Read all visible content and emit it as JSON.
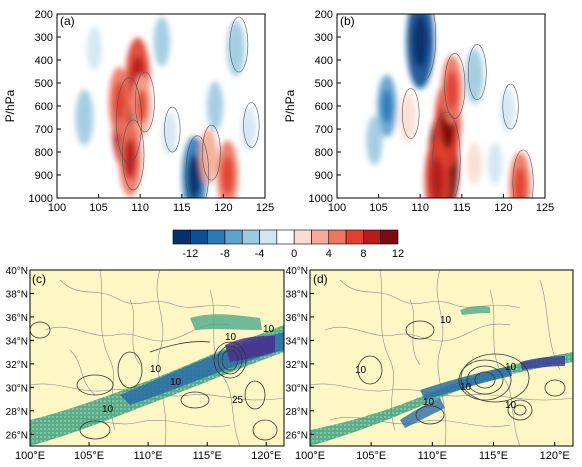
{
  "chart_data": [
    {
      "type": "heatmap",
      "panel_label": "(a)",
      "ylabel": "P/hPa",
      "x_ticks": [
        "100",
        "105",
        "110",
        "115",
        "120",
        "125"
      ],
      "y_ticks": [
        "200",
        "300",
        "400",
        "500",
        "600",
        "700",
        "800",
        "900",
        "1000"
      ],
      "xlim": [
        100,
        125
      ],
      "ylim": [
        1000,
        200
      ],
      "features": [
        {
          "x": 108.3,
          "y": 680,
          "value": 11
        },
        {
          "x": 109.7,
          "y": 480,
          "value": 9
        },
        {
          "x": 108.8,
          "y": 830,
          "value": 8
        },
        {
          "x": 107.5,
          "y": 580,
          "value": 7
        },
        {
          "x": 110.2,
          "y": 600,
          "value": 6
        },
        {
          "x": 103.3,
          "y": 650,
          "value": -5
        },
        {
          "x": 116.5,
          "y": 910,
          "value": -9
        },
        {
          "x": 120.5,
          "y": 900,
          "value": 7
        },
        {
          "x": 118.2,
          "y": 820,
          "value": 5
        },
        {
          "x": 112.6,
          "y": 320,
          "value": -4
        },
        {
          "x": 121.5,
          "y": 350,
          "value": -5
        },
        {
          "x": 104.5,
          "y": 350,
          "value": -3
        },
        {
          "x": 113.5,
          "y": 720,
          "value": -3
        },
        {
          "x": 119.0,
          "y": 600,
          "value": -4
        },
        {
          "x": 123.0,
          "y": 700,
          "value": -3
        },
        {
          "x": 101.5,
          "y": 850,
          "value": 2
        }
      ]
    },
    {
      "type": "heatmap",
      "panel_label": "(b)",
      "ylabel": "P/hPa",
      "x_ticks": [
        "100",
        "105",
        "110",
        "115",
        "120",
        "125"
      ],
      "y_ticks": [
        "200",
        "300",
        "400",
        "500",
        "600",
        "700",
        "800",
        "900",
        "1000"
      ],
      "xlim": [
        100,
        125
      ],
      "ylim": [
        1000,
        200
      ],
      "features": [
        {
          "x": 112.8,
          "y": 850,
          "value": 13
        },
        {
          "x": 113.3,
          "y": 680,
          "value": 10
        },
        {
          "x": 113.8,
          "y": 530,
          "value": 7
        },
        {
          "x": 112.0,
          "y": 920,
          "value": 9
        },
        {
          "x": 110.0,
          "y": 320,
          "value": -11
        },
        {
          "x": 106.0,
          "y": 600,
          "value": -6
        },
        {
          "x": 116.5,
          "y": 470,
          "value": -5
        },
        {
          "x": 104.5,
          "y": 750,
          "value": -4
        },
        {
          "x": 122.0,
          "y": 950,
          "value": 7
        },
        {
          "x": 119.0,
          "y": 850,
          "value": -3
        },
        {
          "x": 108.5,
          "y": 650,
          "value": 4
        },
        {
          "x": 116.5,
          "y": 850,
          "value": 3
        },
        {
          "x": 120.5,
          "y": 620,
          "value": -3
        },
        {
          "x": 103.0,
          "y": 300,
          "value": 2
        }
      ]
    },
    {
      "type": "heatmap",
      "panel_label": "(c)",
      "x_ticks": [
        "100°E",
        "105°E",
        "110°E",
        "115°E",
        "120°E"
      ],
      "y_ticks": [
        "26°N",
        "28°N",
        "30°N",
        "32°N",
        "34°N",
        "36°N",
        "38°N",
        "40°N"
      ],
      "xlim": [
        100,
        121.5
      ],
      "ylim": [
        25,
        40
      ],
      "contour_labels": [
        "10",
        "10",
        "10",
        "10",
        "10",
        "25"
      ]
    },
    {
      "type": "heatmap",
      "panel_label": "(d)",
      "x_ticks": [
        "100°E",
        "105°E",
        "110°E",
        "115°E",
        "120°E"
      ],
      "y_ticks": [
        "26°N",
        "28°N",
        "30°N",
        "32°N",
        "34°N",
        "36°N",
        "38°N",
        "40°N"
      ],
      "xlim": [
        100,
        121.5
      ],
      "ylim": [
        25,
        40
      ],
      "contour_labels": [
        "10",
        "10",
        "10",
        "10",
        "10",
        "10"
      ]
    }
  ],
  "colorbar": {
    "tick_labels": [
      "-12",
      "-8",
      "-4",
      "0",
      "4",
      "8",
      "12"
    ],
    "colors": [
      "#08306b",
      "#0b4f98",
      "#2c7bb6",
      "#5fa2ce",
      "#9ecae1",
      "#d1e6f2",
      "#ffffff",
      "#fbdcd3",
      "#f6aa96",
      "#ee7560",
      "#e0402f",
      "#bb1a1d",
      "#7d0a10"
    ]
  }
}
